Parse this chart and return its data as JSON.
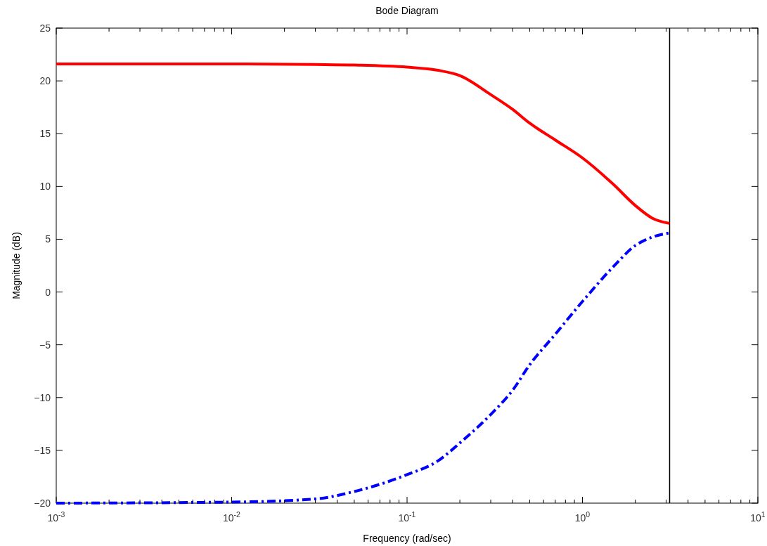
{
  "chart_data": {
    "type": "line",
    "title": "Bode Diagram",
    "xlabel": "Frequency  (rad/sec)",
    "ylabel": "Magnitude (dB)",
    "log": "x",
    "xlim": [
      0.001,
      10
    ],
    "xticks": [
      {
        "value": 0.001,
        "label": "10$^{-3}$"
      },
      {
        "value": 0.01,
        "label": "10$^{-2}$"
      },
      {
        "value": 0.1,
        "label": "10$^{-1}$"
      },
      {
        "value": 1,
        "label": "10$^{0}$"
      },
      {
        "value": 10,
        "label": "10$^{1}$"
      }
    ],
    "ylim": [
      -20,
      25
    ],
    "yticks": [
      -20,
      -15,
      -10,
      -5,
      0,
      5,
      10,
      15,
      20,
      25
    ],
    "grid": false,
    "series": [
      {
        "color": "#ff0000",
        "line_style": "solid",
        "x": [
          0.001,
          0.01,
          0.03,
          0.05,
          0.1,
          0.15,
          0.2,
          0.3,
          0.4,
          0.5,
          0.7,
          1,
          1.5,
          2,
          2.5,
          3.14
        ],
        "values": [
          21.6,
          21.6,
          21.55,
          21.5,
          21.3,
          21.0,
          20.5,
          18.7,
          17.3,
          16.0,
          14.4,
          12.7,
          10.2,
          8.2,
          7.0,
          6.5
        ]
      },
      {
        "color": "#0000ff",
        "line_style": "dashdot",
        "x": [
          0.001,
          0.01,
          0.03,
          0.05,
          0.1,
          0.15,
          0.2,
          0.3,
          0.4,
          0.5,
          0.7,
          1,
          1.5,
          2,
          2.5,
          3.14
        ],
        "values": [
          -20,
          -19.9,
          -19.6,
          -18.9,
          -17.3,
          -16.0,
          -14.3,
          -11.6,
          -9.3,
          -6.9,
          -4.0,
          -0.9,
          2.4,
          4.4,
          5.2,
          5.6
        ]
      }
    ],
    "ref_lines": [
      {
        "axis": "x",
        "value": 3.14,
        "color": "#000000",
        "line_style": "solid"
      }
    ]
  }
}
